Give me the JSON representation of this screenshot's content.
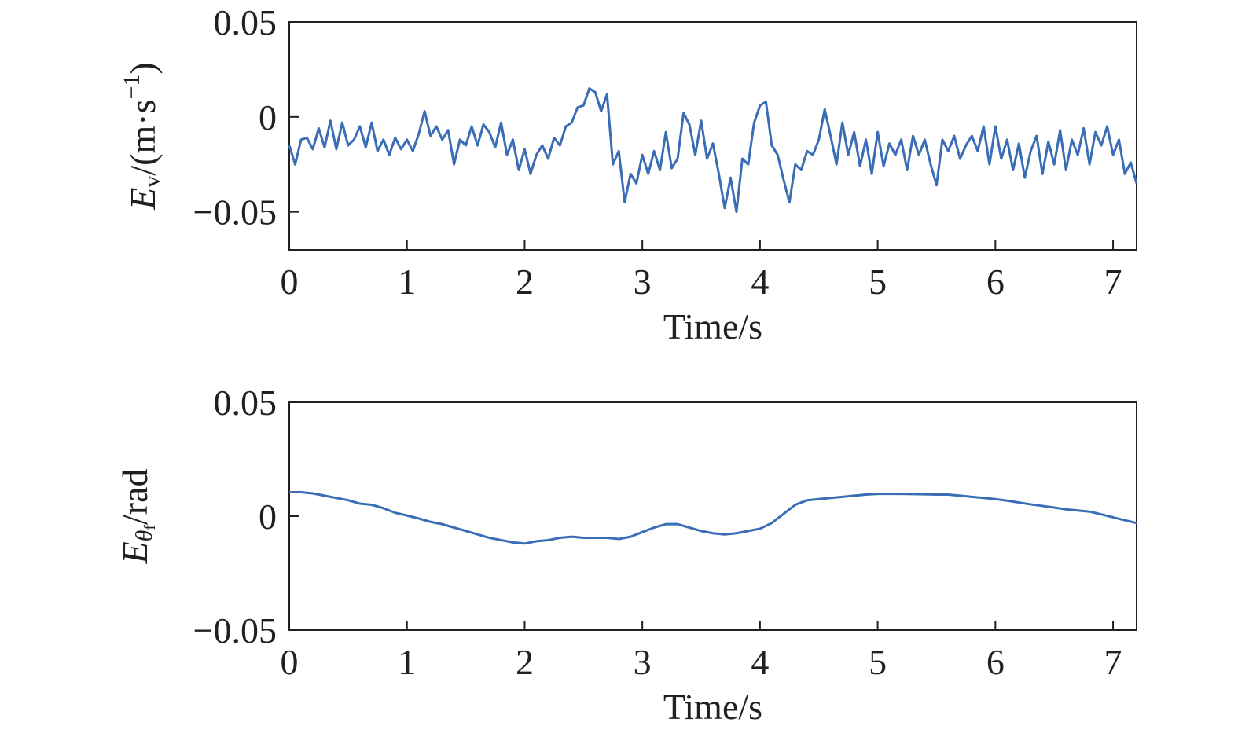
{
  "chart_data": [
    {
      "type": "line",
      "ylabel": [
        "E",
        "v",
        "/(m·s",
        "−1",
        ")"
      ],
      "xlabel": "Time/s",
      "xlim": [
        0,
        7.2
      ],
      "xticks": [
        0,
        1,
        2,
        3,
        4,
        5,
        6,
        7
      ],
      "ylim": [
        -0.07,
        0.05
      ],
      "yticks": [
        {
          "value": -0.05,
          "label": "−0.05"
        },
        0,
        0.05
      ],
      "x": [
        0,
        0.05,
        0.1,
        0.15,
        0.2,
        0.25,
        0.3,
        0.35,
        0.4,
        0.45,
        0.5,
        0.55,
        0.6,
        0.65,
        0.7,
        0.75,
        0.8,
        0.85,
        0.9,
        0.95,
        1,
        1.05,
        1.1,
        1.15,
        1.2,
        1.25,
        1.3,
        1.35,
        1.4,
        1.45,
        1.5,
        1.55,
        1.6,
        1.65,
        1.7,
        1.75,
        1.8,
        1.85,
        1.9,
        1.95,
        2,
        2.05,
        2.1,
        2.15,
        2.2,
        2.25,
        2.3,
        2.35,
        2.4,
        2.45,
        2.5,
        2.55,
        2.6,
        2.65,
        2.7,
        2.75,
        2.8,
        2.85,
        2.9,
        2.95,
        3,
        3.05,
        3.1,
        3.15,
        3.2,
        3.25,
        3.3,
        3.35,
        3.4,
        3.45,
        3.5,
        3.55,
        3.6,
        3.65,
        3.7,
        3.75,
        3.8,
        3.85,
        3.9,
        3.95,
        4,
        4.05,
        4.1,
        4.15,
        4.2,
        4.25,
        4.3,
        4.35,
        4.4,
        4.45,
        4.5,
        4.55,
        4.6,
        4.65,
        4.7,
        4.75,
        4.8,
        4.85,
        4.9,
        4.95,
        5,
        5.05,
        5.1,
        5.15,
        5.2,
        5.25,
        5.3,
        5.35,
        5.4,
        5.45,
        5.5,
        5.55,
        5.6,
        5.65,
        5.7,
        5.75,
        5.8,
        5.85,
        5.9,
        5.95,
        6,
        6.05,
        6.1,
        6.15,
        6.2,
        6.25,
        6.3,
        6.35,
        6.4,
        6.45,
        6.5,
        6.55,
        6.6,
        6.65,
        6.7,
        6.75,
        6.8,
        6.85,
        6.9,
        6.95,
        7,
        7.05,
        7.1,
        7.15,
        7.2
      ],
      "series": [
        {
          "color": "#3a6db5",
          "values": [
            -0.015,
            -0.025,
            -0.012,
            -0.011,
            -0.017,
            -0.006,
            -0.016,
            -0.002,
            -0.017,
            -0.003,
            -0.015,
            -0.012,
            -0.005,
            -0.016,
            -0.003,
            -0.018,
            -0.012,
            -0.02,
            -0.011,
            -0.017,
            -0.012,
            -0.018,
            -0.009,
            0.003,
            -0.01,
            -0.005,
            -0.012,
            -0.007,
            -0.025,
            -0.012,
            -0.015,
            -0.005,
            -0.015,
            -0.004,
            -0.008,
            -0.016,
            -0.003,
            -0.02,
            -0.012,
            -0.028,
            -0.017,
            -0.03,
            -0.02,
            -0.015,
            -0.022,
            -0.011,
            -0.015,
            -0.005,
            -0.003,
            0.005,
            0.006,
            0.015,
            0.013,
            0.003,
            0.012,
            -0.025,
            -0.018,
            -0.045,
            -0.03,
            -0.035,
            -0.02,
            -0.03,
            -0.018,
            -0.028,
            -0.008,
            -0.027,
            -0.022,
            0.002,
            -0.004,
            -0.02,
            -0.002,
            -0.022,
            -0.014,
            -0.03,
            -0.048,
            -0.032,
            -0.05,
            -0.022,
            -0.025,
            -0.003,
            0.006,
            0.008,
            -0.015,
            -0.02,
            -0.033,
            -0.045,
            -0.025,
            -0.028,
            -0.018,
            -0.02,
            -0.012,
            0.004,
            -0.01,
            -0.025,
            -0.003,
            -0.02,
            -0.008,
            -0.026,
            -0.012,
            -0.03,
            -0.008,
            -0.026,
            -0.014,
            -0.02,
            -0.012,
            -0.028,
            -0.01,
            -0.02,
            -0.012,
            -0.025,
            -0.036,
            -0.012,
            -0.018,
            -0.01,
            -0.022,
            -0.015,
            -0.01,
            -0.018,
            -0.005,
            -0.025,
            -0.005,
            -0.022,
            -0.012,
            -0.028,
            -0.014,
            -0.032,
            -0.018,
            -0.01,
            -0.03,
            -0.013,
            -0.025,
            -0.007,
            -0.028,
            -0.012,
            -0.02,
            -0.006,
            -0.025,
            -0.008,
            -0.015,
            -0.005,
            -0.02,
            -0.012,
            -0.03,
            -0.024,
            -0.035
          ]
        }
      ]
    },
    {
      "type": "line",
      "ylabel": [
        "E",
        "θ",
        "f",
        "/rad"
      ],
      "xlabel": "Time/s",
      "xlim": [
        0,
        7.2
      ],
      "xticks": [
        0,
        1,
        2,
        3,
        4,
        5,
        6,
        7
      ],
      "ylim": [
        -0.05,
        0.05
      ],
      "yticks": [
        {
          "value": -0.05,
          "label": "−0.05"
        },
        0,
        0.05
      ],
      "x": [
        0,
        0.1,
        0.2,
        0.3,
        0.4,
        0.5,
        0.6,
        0.7,
        0.8,
        0.9,
        1,
        1.1,
        1.2,
        1.3,
        1.4,
        1.5,
        1.6,
        1.7,
        1.8,
        1.9,
        2,
        2.1,
        2.2,
        2.3,
        2.4,
        2.5,
        2.6,
        2.7,
        2.8,
        2.9,
        3,
        3.1,
        3.2,
        3.3,
        3.4,
        3.5,
        3.6,
        3.7,
        3.8,
        3.9,
        4,
        4.1,
        4.2,
        4.3,
        4.4,
        4.5,
        4.6,
        4.7,
        4.8,
        4.9,
        5,
        5.1,
        5.2,
        5.3,
        5.4,
        5.5,
        5.6,
        5.7,
        5.8,
        5.9,
        6,
        6.1,
        6.2,
        6.3,
        6.4,
        6.5,
        6.6,
        6.7,
        6.8,
        6.9,
        7,
        7.1,
        7.2
      ],
      "series": [
        {
          "color": "#3a6db5",
          "values": [
            0.0105,
            0.0105,
            0.01,
            0.009,
            0.008,
            0.007,
            0.0055,
            0.005,
            0.0035,
            0.0015,
            0.0003,
            -0.001,
            -0.0025,
            -0.0035,
            -0.005,
            -0.0065,
            -0.008,
            -0.0095,
            -0.0105,
            -0.0115,
            -0.012,
            -0.011,
            -0.0105,
            -0.0095,
            -0.009,
            -0.0095,
            -0.0095,
            -0.0095,
            -0.01,
            -0.009,
            -0.007,
            -0.005,
            -0.0035,
            -0.0035,
            -0.005,
            -0.0065,
            -0.0075,
            -0.008,
            -0.0075,
            -0.0065,
            -0.0055,
            -0.003,
            0.001,
            0.005,
            0.007,
            0.0075,
            0.008,
            0.0085,
            0.009,
            0.0095,
            0.0098,
            0.0098,
            0.0098,
            0.0097,
            0.0096,
            0.0095,
            0.0095,
            0.009,
            0.0085,
            0.008,
            0.0075,
            0.0068,
            0.006,
            0.0052,
            0.0045,
            0.0038,
            0.003,
            0.0025,
            0.002,
            0.0008,
            -0.0005,
            -0.0018,
            -0.003
          ]
        }
      ]
    }
  ]
}
